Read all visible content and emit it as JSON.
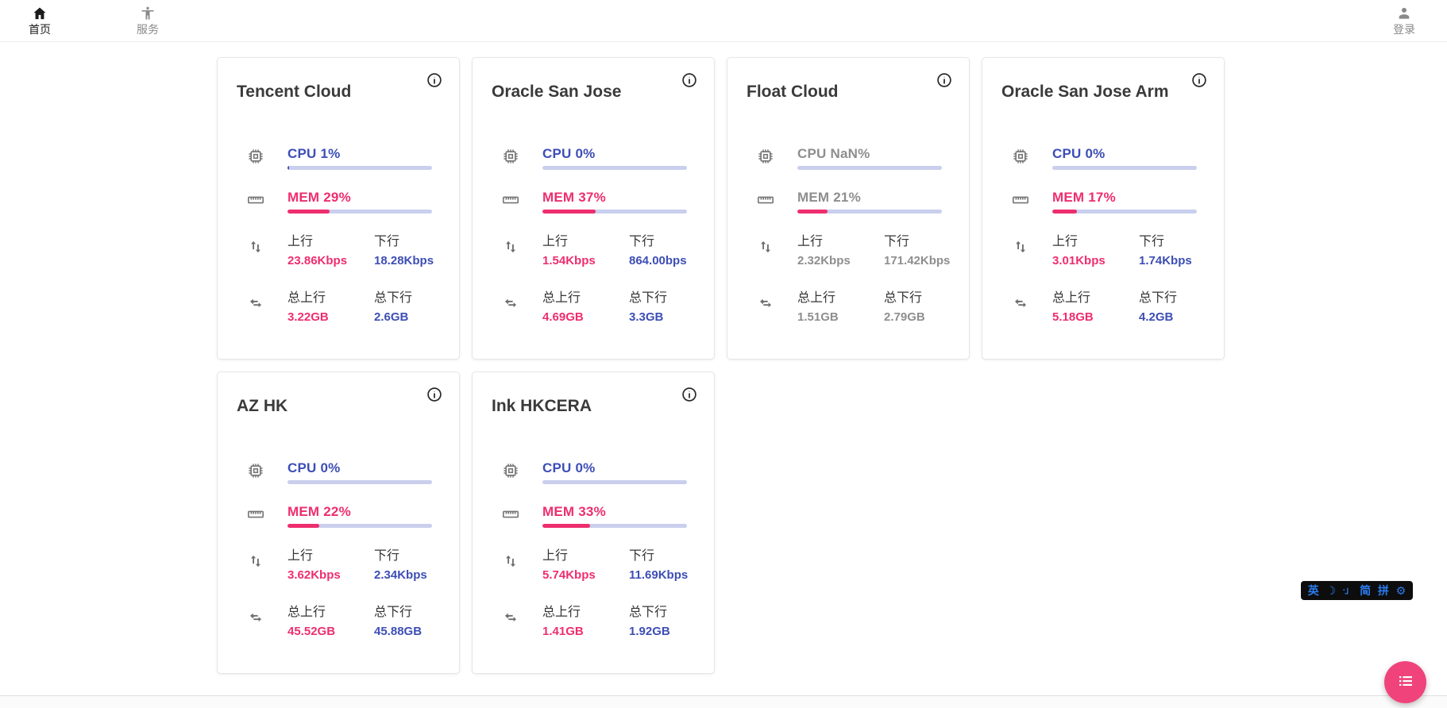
{
  "nav": {
    "home": {
      "label": "首页"
    },
    "services": {
      "label": "服务"
    },
    "login": {
      "label": "登录"
    }
  },
  "labels": {
    "cpu": "CPU",
    "mem": "MEM",
    "up": "上行",
    "down": "下行",
    "total_up": "总上行",
    "total_down": "总下行"
  },
  "colors": {
    "accent_blue": "#3d4eb5",
    "accent_pink": "#ee2e6e",
    "bar_track": "#c9cfec",
    "offline_gray": "#8e8e8e",
    "fab_pink": "#f0437c",
    "ime_blue": "#2b7cf0"
  },
  "servers": [
    {
      "name": "Tencent Cloud",
      "online": true,
      "cpu": "1%",
      "cpu_pct": 1,
      "mem": "29%",
      "mem_pct": 29,
      "up": "23.86Kbps",
      "down": "18.28Kbps",
      "total_up": "3.22GB",
      "total_down": "2.6GB"
    },
    {
      "name": "Oracle San Jose",
      "online": true,
      "cpu": "0%",
      "cpu_pct": 0,
      "mem": "37%",
      "mem_pct": 37,
      "up": "1.54Kbps",
      "down": "864.00bps",
      "total_up": "4.69GB",
      "total_down": "3.3GB"
    },
    {
      "name": "Float Cloud",
      "online": false,
      "cpu": "NaN%",
      "cpu_pct": 0,
      "mem": "21%",
      "mem_pct": 21,
      "up": "2.32Kbps",
      "down": "171.42Kbps",
      "total_up": "1.51GB",
      "total_down": "2.79GB"
    },
    {
      "name": "Oracle San Jose Arm",
      "online": true,
      "cpu": "0%",
      "cpu_pct": 0,
      "mem": "17%",
      "mem_pct": 17,
      "up": "3.01Kbps",
      "down": "1.74Kbps",
      "total_up": "5.18GB",
      "total_down": "4.2GB"
    },
    {
      "name": "AZ HK",
      "online": true,
      "cpu": "0%",
      "cpu_pct": 0,
      "mem": "22%",
      "mem_pct": 22,
      "up": "3.62Kbps",
      "down": "2.34Kbps",
      "total_up": "45.52GB",
      "total_down": "45.88GB"
    },
    {
      "name": "Ink HKCERA",
      "online": true,
      "cpu": "0%",
      "cpu_pct": 0,
      "mem": "33%",
      "mem_pct": 33,
      "up": "5.74Kbps",
      "down": "11.69Kbps",
      "total_up": "1.41GB",
      "total_down": "1.92GB"
    }
  ],
  "ime": {
    "items": [
      "英",
      "☽",
      "·」",
      "简",
      "拼",
      "⚙"
    ]
  }
}
